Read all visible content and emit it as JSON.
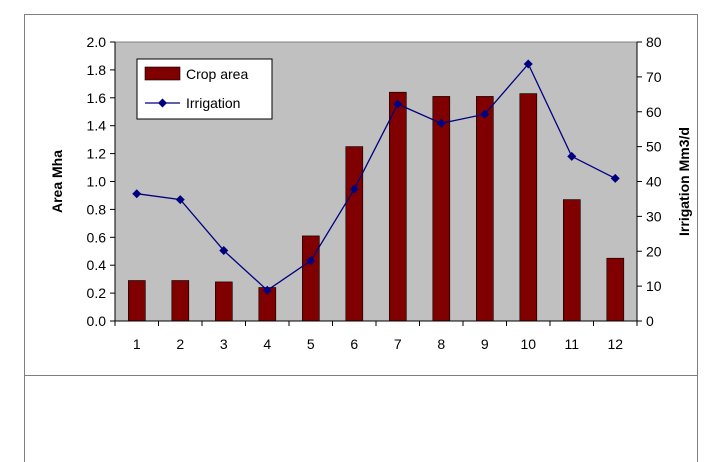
{
  "chart_data": {
    "type": "bar",
    "categories": [
      "1",
      "2",
      "3",
      "4",
      "5",
      "6",
      "7",
      "8",
      "9",
      "10",
      "11",
      "12"
    ],
    "series": [
      {
        "name": "Crop area",
        "type": "bar",
        "axis": "left",
        "values": [
          0.29,
          0.29,
          0.28,
          0.24,
          0.61,
          1.25,
          1.64,
          1.61,
          1.61,
          1.63,
          0.87,
          0.45
        ]
      },
      {
        "name": "Irrigation",
        "type": "line",
        "axis": "right",
        "values": [
          36.5,
          34.8,
          20.2,
          8.8,
          17.3,
          37.8,
          62.2,
          56.7,
          59.3,
          73.7,
          47.2,
          40.9
        ]
      }
    ],
    "ylabel": "Area Mha",
    "y2label": "Irrigation Mm3/d",
    "ylim": [
      0,
      2.0
    ],
    "y2lim": [
      0,
      80
    ],
    "yticks": [
      "0.0",
      "0.2",
      "0.4",
      "0.6",
      "0.8",
      "1.0",
      "1.2",
      "1.4",
      "1.6",
      "1.8",
      "2.0"
    ],
    "y2ticks": [
      "0",
      "10",
      "20",
      "30",
      "40",
      "50",
      "60",
      "70",
      "80"
    ],
    "legend": "top-left",
    "grid": false,
    "colors": {
      "plot_bg": "#c0c0c0",
      "bar": "#800000",
      "line": "#000080"
    }
  }
}
